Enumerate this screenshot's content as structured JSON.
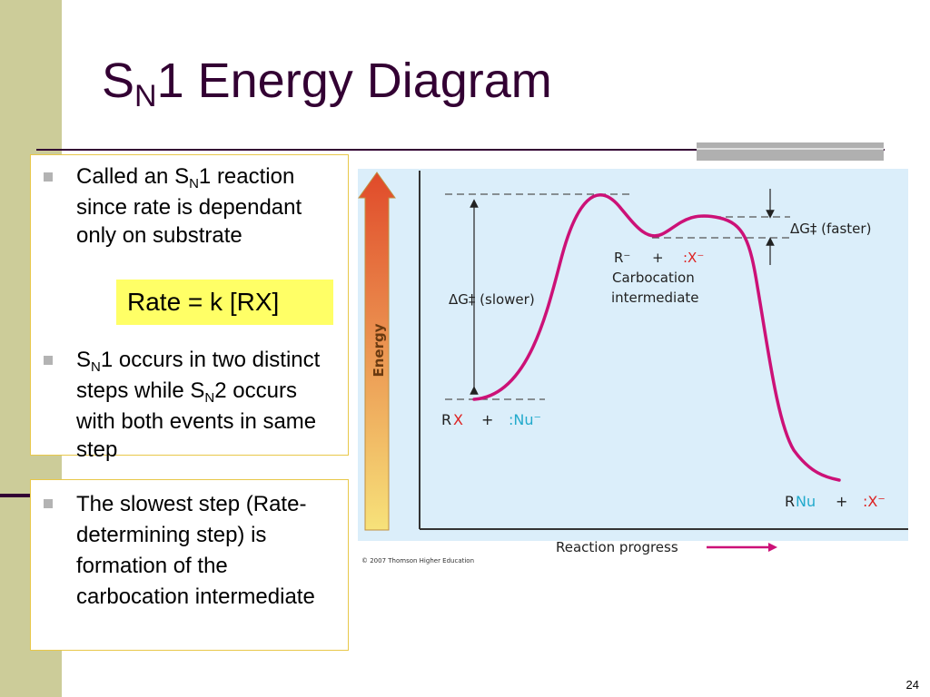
{
  "slide": {
    "title": "1 Energy Diagram",
    "title_prefix": "S",
    "title_sub": "N",
    "page_number": "24"
  },
  "bullets": {
    "b1": {
      "pre": "Called an S",
      "sub": "N",
      "post": "1 reaction since rate is dependant only on substrate"
    },
    "b2": {
      "pre": "S",
      "sub": "N",
      "mid": "1 occurs in two distinct steps while S",
      "sub2": "N",
      "post": "2 occurs with both events in same step"
    },
    "b3": {
      "text": "The slowest step (Rate-determining step) is formation of the carbocation intermediate"
    }
  },
  "rate_box": {
    "text": "Rate = k [RX]"
  },
  "figure": {
    "y_axis_label": "Energy",
    "x_axis_label": "Reaction progress",
    "copyright": "© 2007 Thomson Higher Education",
    "dg_slower": "ΔG‡ (slower)",
    "dg_faster": "ΔG‡ (faster)",
    "reactant_rx_r": "R",
    "reactant_rx_x": "X",
    "plus": "+",
    "nu_minus": ":Nu⁻",
    "intermediate_r": "R⁻",
    "intermediate_x": ":X⁻",
    "carbocation_line1": "Carbocation",
    "carbocation_line2": "intermediate",
    "product_r": "R",
    "product_nu": "Nu",
    "product_x": ":X⁻",
    "colors": {
      "panel": "#dbeefa",
      "curve": "#cc1177",
      "teal": "#22aacc",
      "red": "#dd2222",
      "arrow_top": "#e04a2a",
      "arrow_bottom": "#f7e27a"
    }
  }
}
